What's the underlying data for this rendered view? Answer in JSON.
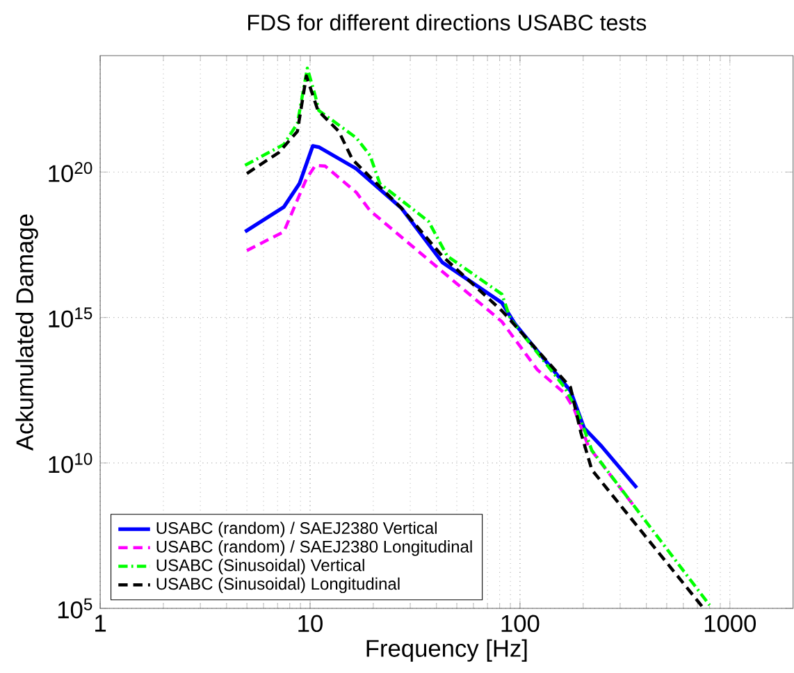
{
  "chart_data": {
    "type": "line",
    "title": "FDS for different directions USABC tests",
    "xlabel": "Frequency [Hz]",
    "ylabel": "Ackumulated Damage",
    "log": "xy",
    "grid": true,
    "legend": "bottom left",
    "xlim": [
      1,
      2000
    ],
    "ylim": [
      100000.0,
      1e+24
    ],
    "xticks": [
      1,
      10,
      100,
      1000
    ],
    "yticks": [
      {
        "value": 100000.0,
        "label": "10$^{5}$"
      },
      {
        "value": 10000000000.0,
        "label": "10$^{10}$"
      },
      {
        "value": 1000000000000000.0,
        "label": "10$^{15}$"
      },
      {
        "value": 1e+20,
        "label": "10$^{20}$"
      }
    ],
    "series": [
      {
        "name": "USABC (random) / SAEJ2380 Vertical",
        "color": "#0000ff",
        "line_style": "solid",
        "x": [
          4.9,
          7.5,
          8.9,
          10.3,
          11,
          16.6,
          27.2,
          42.6,
          82,
          95,
          174,
          202,
          245,
          360
        ],
        "values": [
          8.9e+17,
          6.3e+18,
          4e+19,
          7.9e+20,
          7.2e+20,
          1.3e+20,
          5.8e+18,
          7.9e+16,
          3200000000000000.0,
          580000000000000.0,
          3000000000000.0,
          160000000000.0,
          37000000000.0,
          1400000000.0
        ]
      },
      {
        "name": "USABC (random) / SAEJ2380 Longitudinal",
        "color": "#ff00ff",
        "line_style": "dashed",
        "x": [
          5,
          7.5,
          9.6,
          10.6,
          11.8,
          16.6,
          19.3,
          82,
          121,
          163,
          181,
          212,
          360
        ],
        "values": [
          2e+17,
          8.9e+17,
          5.8e+19,
          1.7e+20,
          1.6e+20,
          2e+19,
          4.7e+18,
          720000000000000.0,
          16000000000000.0,
          2500000000000.0,
          720000000000.0,
          37000000000.0,
          250000000.0
        ]
      },
      {
        "name": "USABC (Sinusoidal) Vertical",
        "color": "#00ff00",
        "line_style": "dashdot",
        "x": [
          4.9,
          7.5,
          8.7,
          9.7,
          10.6,
          11,
          16.6,
          19.3,
          21.5,
          36.7,
          45,
          82,
          90,
          128,
          163,
          186,
          220,
          800
        ],
        "values": [
          1.7e+20,
          8.9e+20,
          4.7e+21,
          3.7e+23,
          4e+22,
          1.3e+22,
          1.5e+21,
          3.7e+20,
          4e+19,
          2e+18,
          1.3e+17,
          6300000000000000.0,
          890000000000000.0,
          37000000000000.0,
          4000000000000.0,
          720000000000.0,
          27000000000.0,
          130000.0
        ]
      },
      {
        "name": "USABC (Sinusoidal) Longitudinal",
        "color": "#000000",
        "line_style": "dashed",
        "x": [
          5,
          7.1,
          8.7,
          9.6,
          10.9,
          13.7,
          15.9,
          27.2,
          42.6,
          82,
          174,
          195,
          220,
          750
        ],
        "values": [
          8.9e+19,
          4.7e+20,
          2.5e+21,
          2e+23,
          1.3e+22,
          2.5e+21,
          2.7e+20,
          5.8e+18,
          1.3e+17,
          1700000000000000.0,
          4000000000000.0,
          110000000000.0,
          5800000000.0,
          100000.0
        ]
      }
    ]
  }
}
